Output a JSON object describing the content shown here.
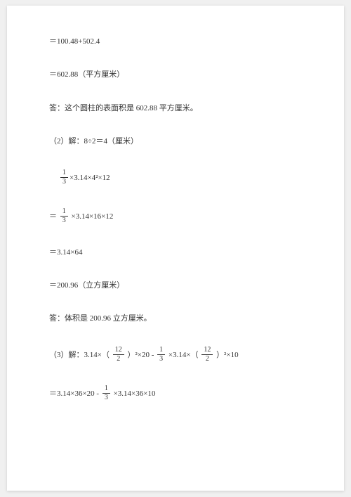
{
  "lines": {
    "l1": "＝100.48+502.4",
    "l2": "＝602.88（平方厘米）",
    "l3": "答：这个圆柱的表面积是 602.88 平方厘米。",
    "l4": "（2）解：8÷2＝4（厘米）",
    "l5b": "×3.14×4²×12",
    "l6a": "＝",
    "l6b": "×3.14×16×12",
    "l7": "＝3.14×64",
    "l8": "＝200.96（立方厘米）",
    "l9": "答：体积是 200.96 立方厘米。",
    "l10a": "（3）解：3.14×（",
    "l10b": "）²×20 - ",
    "l10c": "×3.14×（",
    "l10d": "）²×10",
    "l11a": "＝3.14×36×20 - ",
    "l11b": "×3.14×36×10"
  },
  "fracs": {
    "one_third": {
      "num": "1",
      "den": "3"
    },
    "twelve_half": {
      "num": "12",
      "den": "2"
    }
  }
}
